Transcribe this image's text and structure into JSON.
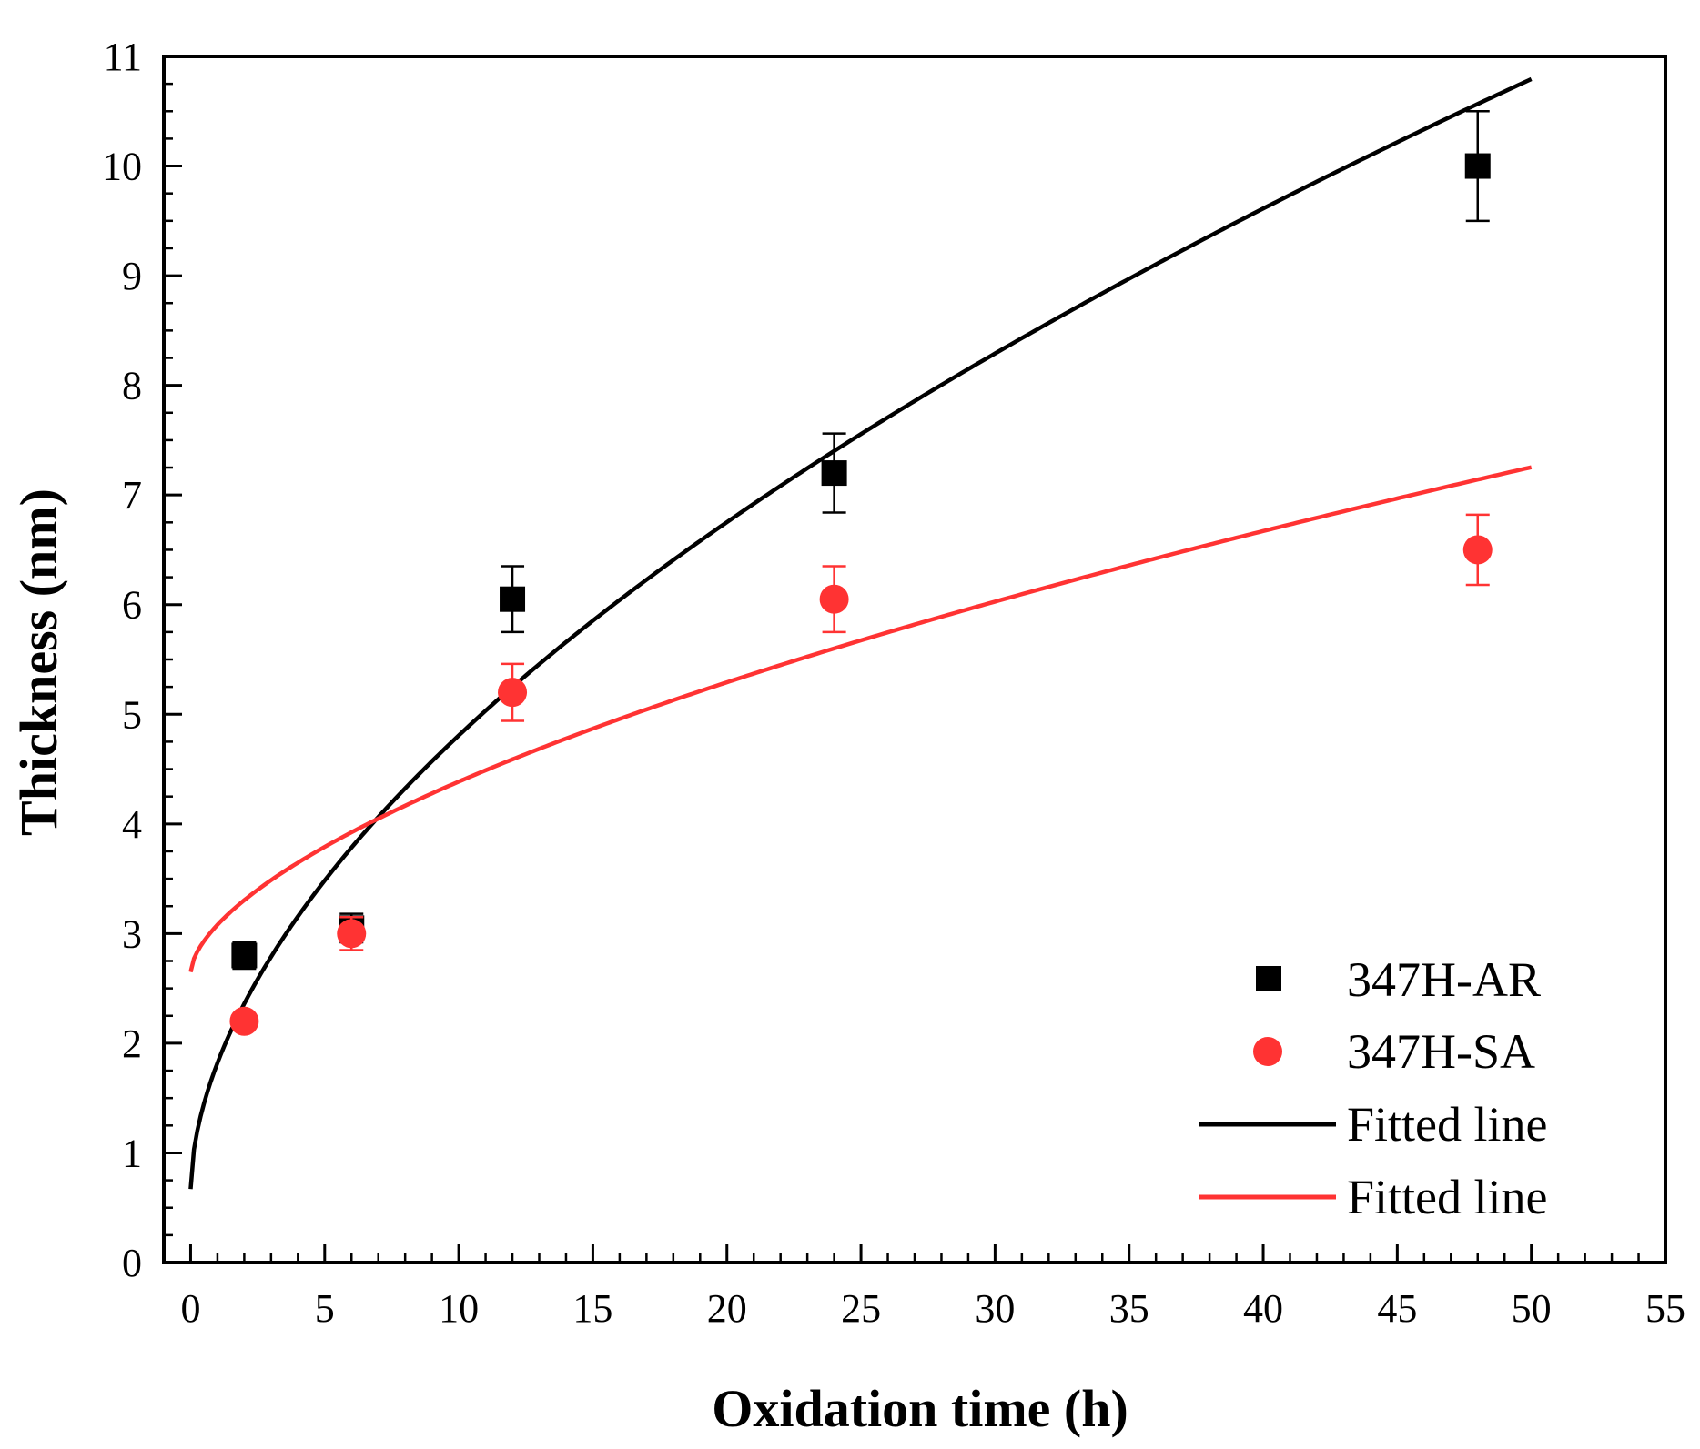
{
  "chart_data": {
    "type": "scatter",
    "title": "",
    "xlabel": "Oxidation time (h)",
    "ylabel": "Thickness (nm)",
    "xlim": [
      -1,
      55
    ],
    "ylim": [
      0,
      11
    ],
    "x_ticks": [
      0,
      5,
      10,
      15,
      20,
      25,
      30,
      35,
      40,
      45,
      50,
      55
    ],
    "y_ticks": [
      0,
      1,
      2,
      3,
      4,
      5,
      6,
      7,
      8,
      9,
      10,
      11
    ],
    "x_tick_labels": [
      "0",
      "5",
      "10",
      "15",
      "20",
      "25",
      "30",
      "35",
      "40",
      "45",
      "50",
      "55"
    ],
    "y_tick_labels": [
      "0",
      "1",
      "2",
      "3",
      "4",
      "5",
      "6",
      "7",
      "8",
      "9",
      "10",
      "11"
    ],
    "grid": false,
    "legend_position": "bottom-right",
    "series": [
      {
        "name": "347H-AR",
        "marker": "square",
        "color": "#000000",
        "x": [
          2,
          6,
          12,
          24,
          48
        ],
        "y": [
          2.8,
          3.05,
          6.05,
          7.2,
          10.0
        ],
        "yerr": [
          0.12,
          0.13,
          0.3,
          0.36,
          0.5
        ]
      },
      {
        "name": "347H-SA",
        "marker": "circle",
        "color": "#ff3333",
        "x": [
          2,
          6,
          12,
          24,
          48
        ],
        "y": [
          2.2,
          3.0,
          5.2,
          6.05,
          6.5
        ],
        "yerr": [
          0.06,
          0.15,
          0.26,
          0.3,
          0.32
        ]
      }
    ],
    "fits": [
      {
        "name": "Fitted line",
        "color": "#000000",
        "model": "power",
        "a": 0.67,
        "b": 1.15,
        "c": 0.556,
        "x_range": [
          0,
          50
        ]
      },
      {
        "name": "Fitted line",
        "color": "#ff3333",
        "model": "power",
        "a": 2.65,
        "b": 0.43,
        "c": 0.606,
        "x_range": [
          0,
          50
        ]
      }
    ],
    "legend": [
      "347H-AR",
      "347H-SA",
      "Fitted line",
      "Fitted line"
    ]
  }
}
